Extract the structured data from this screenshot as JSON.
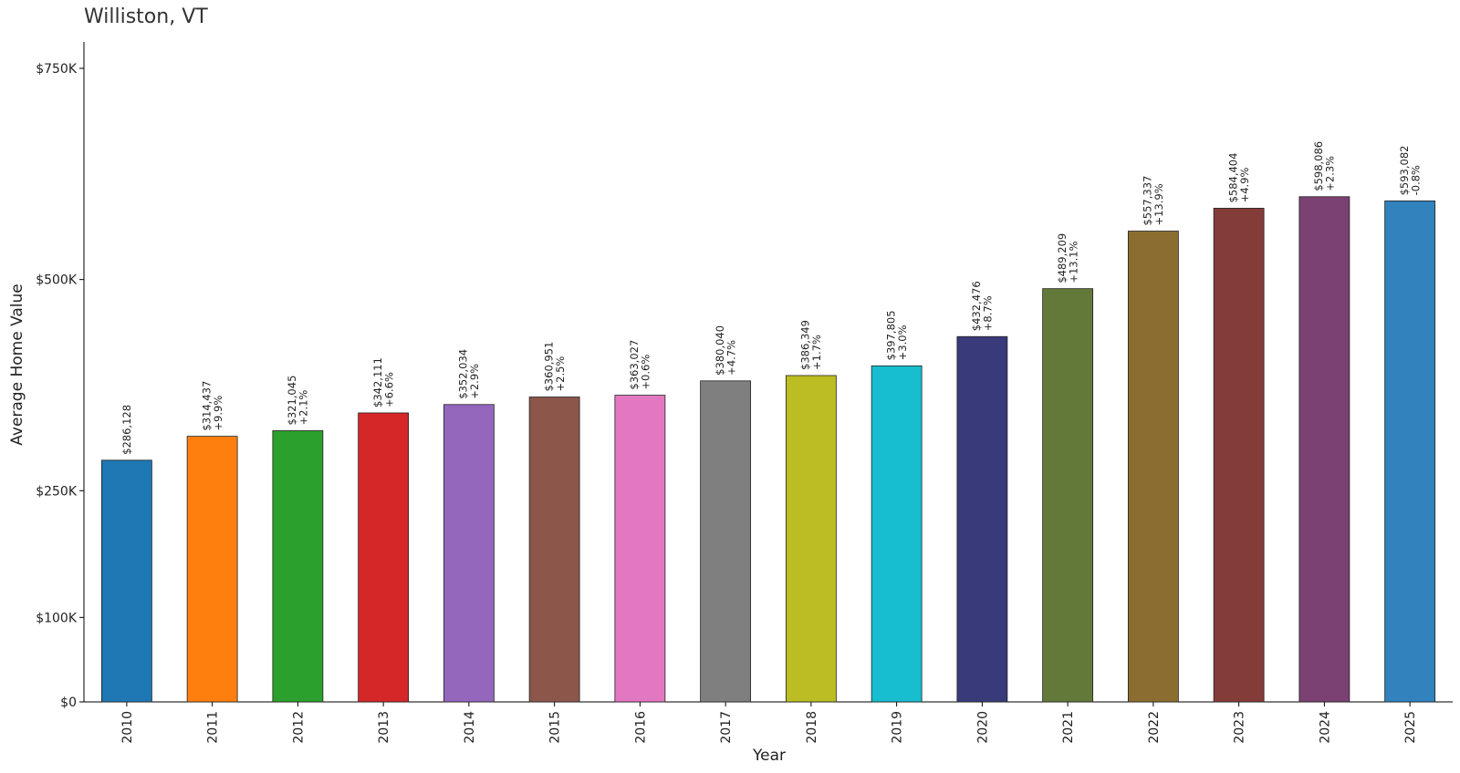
{
  "chart_data": {
    "type": "bar",
    "title": "Williston, VT",
    "xlabel": "Year",
    "ylabel": "Average Home Value",
    "ylim": [
      0,
      780000
    ],
    "yticks": [
      {
        "value": 0,
        "label": "$0"
      },
      {
        "value": 100000,
        "label": "$100K"
      },
      {
        "value": 250000,
        "label": "$250K"
      },
      {
        "value": 500000,
        "label": "$500K"
      },
      {
        "value": 750000,
        "label": "$750K"
      }
    ],
    "categories": [
      "2010",
      "2011",
      "2012",
      "2013",
      "2014",
      "2015",
      "2016",
      "2017",
      "2018",
      "2019",
      "2020",
      "2021",
      "2022",
      "2023",
      "2024",
      "2025"
    ],
    "values": [
      286128,
      314437,
      321045,
      342111,
      352034,
      360951,
      363027,
      380040,
      386349,
      397805,
      432476,
      489209,
      557337,
      584404,
      598086,
      593082
    ],
    "value_labels": [
      "$286,128",
      "$314,437",
      "$321,045",
      "$342,111",
      "$352,034",
      "$360,951",
      "$363,027",
      "$380,040",
      "$386,349",
      "$397,805",
      "$432,476",
      "$489,209",
      "$557,337",
      "$584,404",
      "$598,086",
      "$593,082"
    ],
    "change_labels": [
      "",
      "+9.9%",
      "+2.1%",
      "+6.6%",
      "+2.9%",
      "+2.5%",
      "+0.6%",
      "+4.7%",
      "+1.7%",
      "+3.0%",
      "+8.7%",
      "+13.1%",
      "+13.9%",
      "+4.9%",
      "+2.3%",
      "-0.8%"
    ],
    "colors": [
      "#1f77b4",
      "#ff7f0e",
      "#2ca02c",
      "#d62728",
      "#9467bd",
      "#8c564b",
      "#e377c2",
      "#7f7f7f",
      "#bcbd22",
      "#17becf",
      "#393a7a",
      "#637939",
      "#8c6d31",
      "#843c39",
      "#7b4173",
      "#3182bd"
    ],
    "grid": false,
    "legend": "none"
  }
}
